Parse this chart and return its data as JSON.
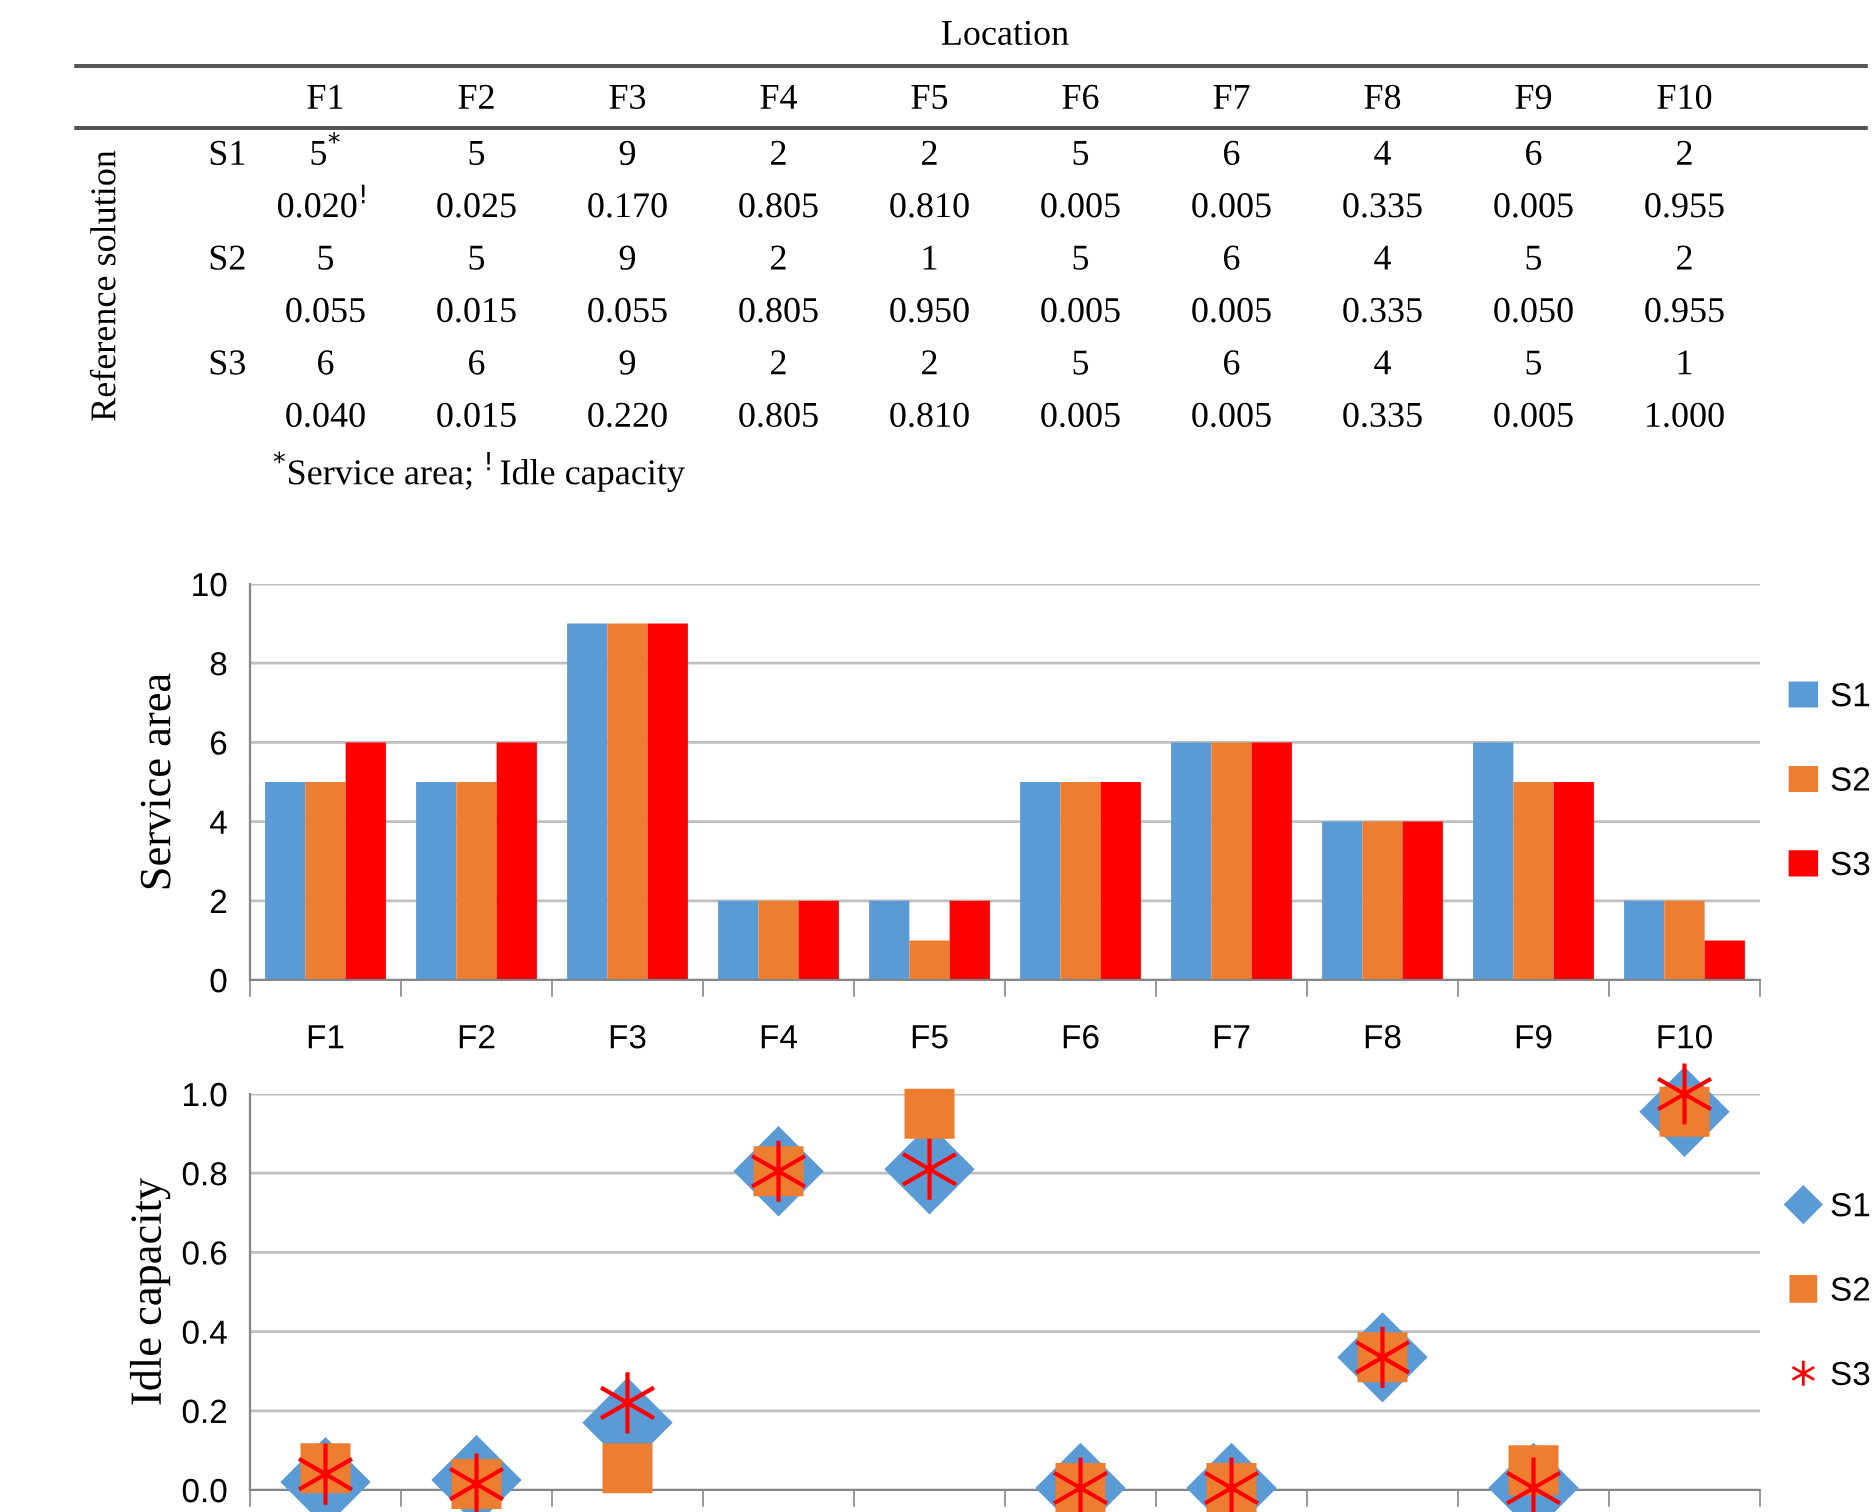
{
  "chart_data": [
    {
      "type": "bar",
      "ylabel": "Service area",
      "categories": [
        "F1",
        "F2",
        "F3",
        "F4",
        "F5",
        "F6",
        "F7",
        "F8",
        "F9",
        "F10"
      ],
      "tick_labels": "y",
      "ylim": [
        0,
        10
      ],
      "yticks": [
        0,
        2,
        4,
        6,
        8,
        10
      ],
      "grid": "y",
      "legend": "right",
      "annotations": [
        "Location",
        "Reference solution",
        "$^{*}$Service area; $^{!}$Idle capacity"
      ],
      "series": [
        {
          "name": "S1",
          "color": "#5b9bd5",
          "values": [
            5,
            5,
            9,
            2,
            2,
            5,
            6,
            4,
            6,
            2
          ],
          "value_labels": [
            "5$^{*}$",
            "5",
            "9",
            "2",
            "2",
            "5",
            "6",
            "4",
            "6",
            "2"
          ]
        },
        {
          "name": "S2",
          "color": "#ed7d31",
          "values": [
            5,
            5,
            9,
            2,
            1,
            5,
            6,
            4,
            5,
            2
          ],
          "value_labels": [
            "5",
            "5",
            "9",
            "2",
            "1",
            "5",
            "6",
            "4",
            "5",
            "2"
          ]
        },
        {
          "name": "S3",
          "color": "#ff0000",
          "values": [
            6,
            6,
            9,
            2,
            2,
            5,
            6,
            4,
            5,
            1
          ],
          "value_labels": [
            "6",
            "6",
            "9",
            "2",
            "2",
            "5",
            "6",
            "4",
            "5",
            "1"
          ]
        }
      ]
    },
    {
      "type": "scatter",
      "ylabel": "Idle capacity",
      "categories": [
        "F1",
        "F2",
        "F3",
        "F4",
        "F5",
        "F6",
        "F7",
        "F8",
        "F9",
        "F10"
      ],
      "ylim": [
        0,
        1.0
      ],
      "yticks": [
        {
          "value": 0,
          "label": "0.0"
        },
        0.2,
        0.4,
        0.6,
        0.8,
        {
          "value": 1.0,
          "label": "1.0"
        }
      ],
      "grid": "y",
      "legend": "right",
      "series": [
        {
          "name": "S1",
          "color": "#5b9bd5",
          "marker": "diamond",
          "values": [
            0.02,
            0.025,
            0.17,
            0.805,
            0.81,
            0.005,
            0.005,
            0.335,
            0.005,
            0.955
          ],
          "value_labels": [
            "0.020$^{!}$",
            "0.025",
            "0.170",
            "0.805",
            "0.810",
            "0.005",
            "0.005",
            "0.335",
            "0.005",
            "0.955"
          ]
        },
        {
          "name": "S2",
          "color": "#ed7d31",
          "marker": "square",
          "values": [
            0.055,
            0.015,
            0.055,
            0.805,
            0.95,
            0.005,
            0.005,
            0.335,
            0.05,
            0.955
          ],
          "value_labels": [
            "0.055",
            "0.015",
            "0.055",
            "0.805",
            "0.950",
            "0.005",
            "0.005",
            "0.335",
            "0.050",
            "0.955"
          ]
        },
        {
          "name": "S3",
          "color": "#ff0000",
          "marker": "cross",
          "values": [
            0.04,
            0.015,
            0.22,
            0.805,
            0.81,
            0.005,
            0.005,
            0.335,
            0.005,
            1.0
          ],
          "value_labels": [
            "0.040",
            "0.015",
            "0.220",
            "0.805",
            "0.810",
            "0.005",
            "0.005",
            "0.335",
            "0.005",
            "1.000"
          ]
        }
      ]
    }
  ]
}
